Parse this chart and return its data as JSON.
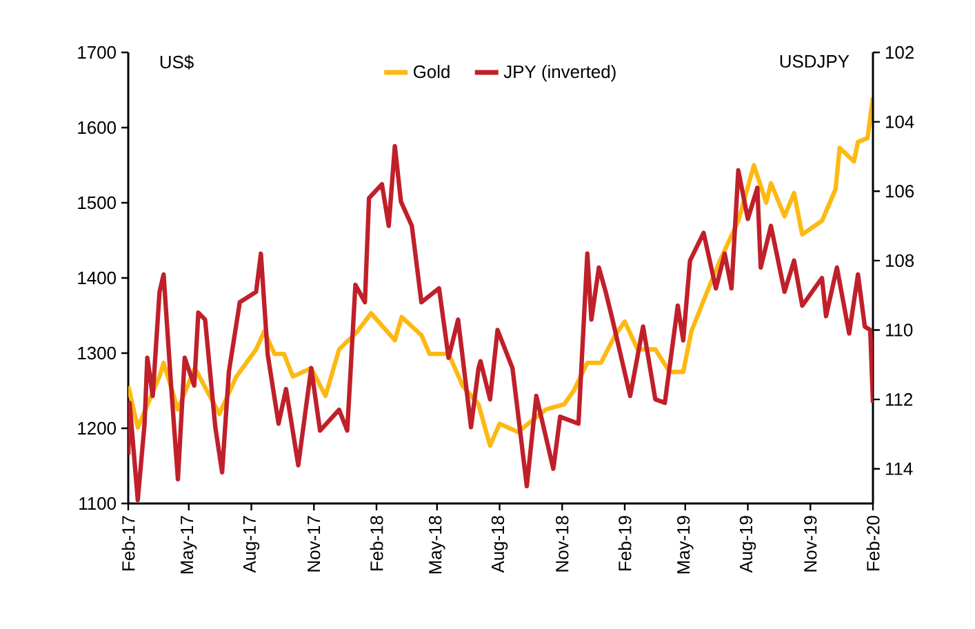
{
  "chart_data": {
    "type": "line",
    "ylabel": "US$",
    "y2label": "USDJPY",
    "legend": "top",
    "marker": "none",
    "line_style": "solid",
    "xlim": [
      "2017-02-01",
      "2020-02-01"
    ],
    "xticks": [
      {
        "value": "2017-02",
        "label": "Feb-17"
      },
      {
        "value": "2017-05",
        "label": "May-17"
      },
      {
        "value": "2017-08",
        "label": "Aug-17"
      },
      {
        "value": "2017-11",
        "label": "Nov-17"
      },
      {
        "value": "2018-02",
        "label": "Feb-18"
      },
      {
        "value": "2018-05",
        "label": "May-18"
      },
      {
        "value": "2018-08",
        "label": "Aug-18"
      },
      {
        "value": "2018-11",
        "label": "Nov-18"
      },
      {
        "value": "2019-02",
        "label": "Feb-19"
      },
      {
        "value": "2019-05",
        "label": "May-19"
      },
      {
        "value": "2019-08",
        "label": "Aug-19"
      },
      {
        "value": "2019-11",
        "label": "Nov-19"
      },
      {
        "value": "2020-02",
        "label": "Feb-20"
      }
    ],
    "ylim": [
      1100,
      1700
    ],
    "yticks": [
      1100,
      1200,
      1300,
      1400,
      1500,
      1600,
      1700
    ],
    "y2lim": [
      115,
      102
    ],
    "y2ticks": [
      102,
      104,
      106,
      108,
      110,
      112,
      114
    ],
    "series": [
      {
        "name": "Gold",
        "color": "#fdb913",
        "x": [
          "2017-02-01",
          "2017-02-15",
          "2017-03-19",
          "2017-03-25",
          "2017-04-15",
          "2017-05-10",
          "2017-06-15",
          "2017-07-10",
          "2017-08-08",
          "2017-08-20",
          "2017-09-04",
          "2017-09-18",
          "2017-10-01",
          "2017-10-28",
          "2017-11-18",
          "2017-12-08",
          "2018-01-04",
          "2018-01-24",
          "2018-02-28",
          "2018-03-10",
          "2018-04-08",
          "2018-04-20",
          "2018-05-18",
          "2018-06-08",
          "2018-07-01",
          "2018-07-18",
          "2018-08-01",
          "2018-08-28",
          "2018-10-08",
          "2018-11-04",
          "2018-11-18",
          "2018-12-08",
          "2018-12-28",
          "2019-01-18",
          "2019-02-01",
          "2019-02-20",
          "2019-03-18",
          "2019-04-08",
          "2019-04-28",
          "2019-05-10",
          "2019-06-01",
          "2019-06-20",
          "2019-07-18",
          "2019-08-10",
          "2019-08-28",
          "2019-09-04",
          "2019-09-24",
          "2019-10-08",
          "2019-10-20",
          "2019-11-18",
          "2019-12-08",
          "2019-12-14",
          "2020-01-04",
          "2020-01-10",
          "2020-01-24",
          "2020-02-01"
        ],
        "values": [
          1256,
          1201,
          1269,
          1287,
          1225,
          1280,
          1219,
          1269,
          1305,
          1329,
          1299,
          1299,
          1269,
          1280,
          1243,
          1305,
          1329,
          1353,
          1317,
          1348,
          1324,
          1299,
          1299,
          1256,
          1232,
          1177,
          1206,
          1195,
          1225,
          1232,
          1250,
          1287,
          1287,
          1324,
          1342,
          1305,
          1305,
          1275,
          1275,
          1329,
          1379,
          1421,
          1476,
          1550,
          1500,
          1526,
          1482,
          1513,
          1458,
          1476,
          1518,
          1573,
          1555,
          1581,
          1586,
          1640
        ]
      },
      {
        "name": "JPY (inverted)",
        "color": "#c0202a",
        "axis": "y2",
        "x": [
          "2017-02-01",
          "2017-02-03",
          "2017-02-15",
          "2017-02-25",
          "2017-03-01",
          "2017-03-09",
          "2017-03-19",
          "2017-03-25",
          "2017-04-05",
          "2017-04-15",
          "2017-04-25",
          "2017-05-09",
          "2017-05-15",
          "2017-05-25",
          "2017-06-09",
          "2017-06-19",
          "2017-06-29",
          "2017-07-15",
          "2017-08-08",
          "2017-08-15",
          "2017-08-25",
          "2017-09-10",
          "2017-09-21",
          "2017-10-09",
          "2017-10-28",
          "2017-11-10",
          "2017-12-08",
          "2017-12-20",
          "2018-01-01",
          "2018-01-15",
          "2018-01-21",
          "2018-02-09",
          "2018-02-19",
          "2018-02-28",
          "2018-03-09",
          "2018-03-25",
          "2018-04-08",
          "2018-05-04",
          "2018-05-18",
          "2018-06-01",
          "2018-06-20",
          "2018-07-01",
          "2018-07-04",
          "2018-07-18",
          "2018-07-29",
          "2018-08-20",
          "2018-09-10",
          "2018-09-24",
          "2018-10-19",
          "2018-10-29",
          "2018-11-25",
          "2018-12-08",
          "2018-12-14",
          "2018-12-25",
          "2019-01-04",
          "2019-01-14",
          "2019-02-09",
          "2019-02-28",
          "2019-03-18",
          "2019-04-01",
          "2019-04-20",
          "2019-04-28",
          "2019-05-08",
          "2019-05-28",
          "2019-06-15",
          "2019-06-28",
          "2019-07-08",
          "2019-07-18",
          "2019-08-01",
          "2019-08-15",
          "2019-08-20",
          "2019-09-04",
          "2019-09-24",
          "2019-10-08",
          "2019-10-20",
          "2019-11-18",
          "2019-11-24",
          "2019-12-10",
          "2019-12-28",
          "2020-01-10",
          "2020-01-20",
          "2020-01-28",
          "2020-02-01"
        ],
        "values": [
          113.6,
          112.1,
          114.9,
          112.7,
          110.8,
          111.9,
          108.9,
          108.4,
          111.6,
          114.3,
          110.8,
          111.6,
          109.5,
          109.7,
          112.8,
          114.1,
          111.2,
          109.2,
          108.9,
          107.8,
          110.7,
          112.7,
          111.7,
          113.9,
          111.1,
          112.9,
          112.3,
          112.9,
          108.7,
          109.2,
          106.2,
          105.8,
          107.0,
          104.7,
          106.3,
          107.0,
          109.2,
          108.8,
          110.8,
          109.7,
          112.8,
          111.1,
          110.9,
          112.0,
          110.0,
          111.1,
          114.5,
          111.9,
          114.0,
          112.5,
          112.7,
          107.8,
          109.7,
          108.2,
          108.9,
          109.7,
          111.9,
          109.9,
          112.0,
          112.1,
          109.3,
          110.3,
          108.0,
          107.2,
          108.8,
          107.8,
          108.8,
          105.4,
          106.8,
          105.9,
          108.2,
          107.0,
          108.9,
          108.0,
          109.3,
          108.5,
          109.6,
          108.2,
          110.1,
          108.4,
          109.9,
          110.0,
          112.1
        ]
      }
    ]
  }
}
